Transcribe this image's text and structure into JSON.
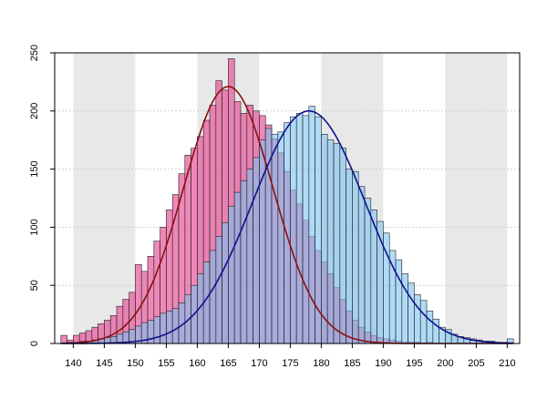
{
  "chart_data": {
    "type": "bar",
    "title": "",
    "xlabel": "",
    "ylabel": "",
    "xlim": [
      137,
      212
    ],
    "ylim": [
      0,
      250
    ],
    "bin_width": 1,
    "x_ticks": [
      140,
      145,
      150,
      155,
      160,
      165,
      170,
      175,
      180,
      185,
      190,
      195,
      200,
      205,
      210
    ],
    "y_ticks": [
      0,
      50,
      100,
      150,
      200,
      250
    ],
    "x_tick_labels": [
      "140",
      "145",
      "150",
      "155",
      "160",
      "165",
      "170",
      "175",
      "180",
      "185",
      "190",
      "195",
      "200",
      "205",
      "210"
    ],
    "y_tick_labels": [
      "0",
      "50",
      "100",
      "150",
      "200",
      "250"
    ],
    "grid": true,
    "shaded_bands": [
      [
        140,
        150
      ],
      [
        160,
        170
      ],
      [
        180,
        190
      ],
      [
        200,
        210
      ]
    ],
    "series": [
      {
        "color": "#e7569a",
        "x": [
          138,
          139,
          140,
          141,
          142,
          143,
          144,
          145,
          146,
          147,
          148,
          149,
          150,
          151,
          152,
          153,
          154,
          155,
          156,
          157,
          158,
          159,
          160,
          161,
          162,
          163,
          164,
          165,
          166,
          167,
          168,
          169,
          170,
          171,
          172,
          173,
          174,
          175,
          176,
          177,
          178,
          179,
          180,
          181,
          182,
          183,
          184,
          185,
          186,
          187,
          188,
          189,
          190,
          191,
          192,
          193,
          194,
          195,
          196,
          197
        ],
        "values": [
          7,
          3,
          7,
          9,
          11,
          14,
          17,
          20,
          24,
          32,
          38,
          44,
          68,
          62,
          75,
          88,
          100,
          115,
          128,
          146,
          162,
          168,
          178,
          192,
          205,
          226,
          218,
          245,
          208,
          198,
          205,
          200,
          196,
          188,
          176,
          164,
          148,
          132,
          120,
          106,
          92,
          80,
          70,
          60,
          48,
          38,
          28,
          20,
          14,
          10,
          7,
          5,
          4,
          3,
          2,
          1,
          1,
          1,
          0,
          1
        ],
        "fit": {
          "mean": 165,
          "sd": 7.2,
          "peak": 221,
          "color": "#8b1010"
        }
      },
      {
        "color": "#7cc3f2",
        "x": [
          139,
          140,
          141,
          142,
          143,
          144,
          145,
          146,
          147,
          148,
          149,
          150,
          151,
          152,
          153,
          154,
          155,
          156,
          157,
          158,
          159,
          160,
          161,
          162,
          163,
          164,
          165,
          166,
          167,
          168,
          169,
          170,
          171,
          172,
          173,
          174,
          175,
          176,
          177,
          178,
          179,
          180,
          181,
          182,
          183,
          184,
          185,
          186,
          187,
          188,
          189,
          190,
          191,
          192,
          193,
          194,
          195,
          196,
          197,
          198,
          199,
          200,
          201,
          202,
          203,
          204,
          205,
          206,
          207,
          208,
          209,
          210
        ],
        "values": [
          1,
          1,
          2,
          2,
          3,
          4,
          5,
          6,
          8,
          10,
          12,
          15,
          18,
          20,
          23,
          26,
          28,
          30,
          35,
          42,
          50,
          60,
          70,
          80,
          92,
          104,
          118,
          130,
          140,
          150,
          160,
          175,
          185,
          180,
          182,
          190,
          195,
          198,
          196,
          204,
          195,
          180,
          175,
          172,
          168,
          150,
          148,
          135,
          125,
          115,
          105,
          95,
          80,
          72,
          60,
          52,
          42,
          37,
          28,
          21,
          14,
          12,
          8,
          6,
          5,
          4,
          3,
          2,
          2,
          1,
          1,
          4
        ],
        "fit": {
          "mean": 178,
          "sd": 9.1,
          "peak": 200,
          "color": "#10108b"
        }
      }
    ]
  }
}
